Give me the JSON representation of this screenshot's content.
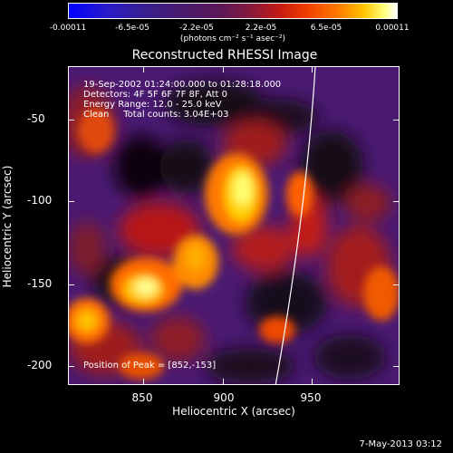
{
  "colorbar": {
    "ticks": [
      "-0.00011",
      "-6.5e-05",
      "-2.2e-05",
      "2.2e-05",
      "6.5e-05",
      "0.00011"
    ],
    "units": "(photons cm⁻² s⁻¹ asec⁻²)"
  },
  "title": "Reconstructed RHESSI Image",
  "annotations": {
    "time": "19-Sep-2002 01:24:00.000 to 01:28:18.000",
    "detectors": "Detectors: 4F 5F 6F 7F 8F, Att 0",
    "energy": "Energy Range: 12.0 - 25.0 keV",
    "clean": "Clean     Total counts: 3.04E+03",
    "peak": "Position of Peak = [852,-153]"
  },
  "axes": {
    "xlabel": "Heliocentric X (arcsec)",
    "ylabel": "Heliocentric Y (arcsec)",
    "xticks": [
      "850",
      "900",
      "950"
    ],
    "yticks": [
      "-50",
      "-100",
      "-150",
      "-200"
    ]
  },
  "datestamp": "7-May-2013 03:12",
  "colors": {
    "background": "#000000",
    "limb": "#ffffff"
  }
}
